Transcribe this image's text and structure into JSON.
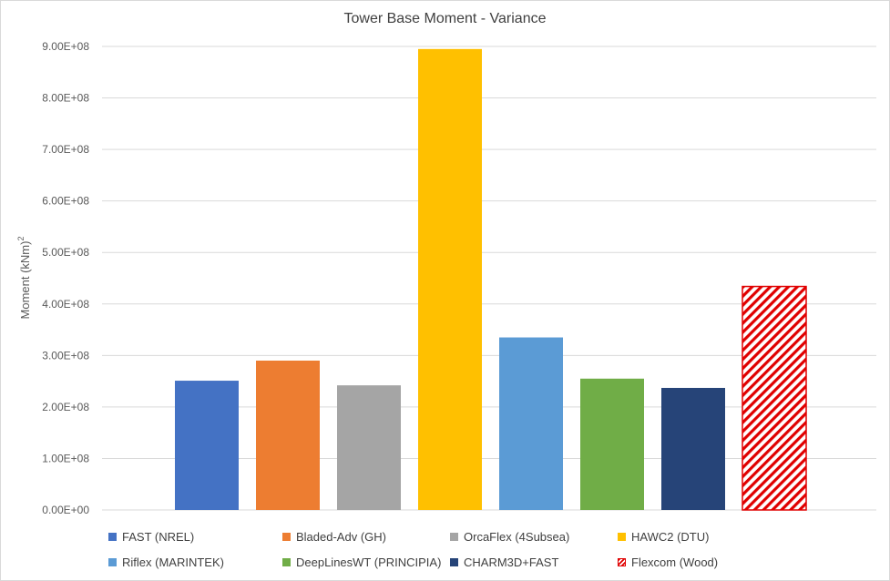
{
  "chart_data": {
    "type": "bar",
    "title": "Tower Base Moment - Variance",
    "ylabel": "Moment (kNm)",
    "ylabel_superscript": "2",
    "xlabel": "",
    "ylim": [
      0,
      900000000
    ],
    "y_ticks": [
      "0.00E+00",
      "1.00E+08",
      "2.00E+08",
      "3.00E+08",
      "4.00E+08",
      "5.00E+08",
      "6.00E+08",
      "7.00E+08",
      "8.00E+08",
      "9.00E+08"
    ],
    "grid": true,
    "legend_position": "bottom",
    "series": [
      {
        "name": "FAST (NREL)",
        "value": 251000000,
        "color": "#4472c4",
        "hatched": false
      },
      {
        "name": "Bladed-Adv (GH)",
        "value": 290000000,
        "color": "#ed7d31",
        "hatched": false
      },
      {
        "name": "OrcaFlex (4Subsea)",
        "value": 242000000,
        "color": "#a5a5a5",
        "hatched": false
      },
      {
        "name": "HAWC2 (DTU)",
        "value": 895000000,
        "color": "#ffc000",
        "hatched": false
      },
      {
        "name": "Riflex (MARINTEK)",
        "value": 335000000,
        "color": "#5b9bd5",
        "hatched": false
      },
      {
        "name": "DeepLinesWT (PRINCIPIA)",
        "value": 255000000,
        "color": "#70ad47",
        "hatched": false
      },
      {
        "name": "CHARM3D+FAST",
        "value": 237000000,
        "color": "#264478",
        "hatched": false
      },
      {
        "name": "Flexcom (Wood)",
        "value": 434000000,
        "color": "#e00000",
        "hatched": true
      }
    ]
  }
}
